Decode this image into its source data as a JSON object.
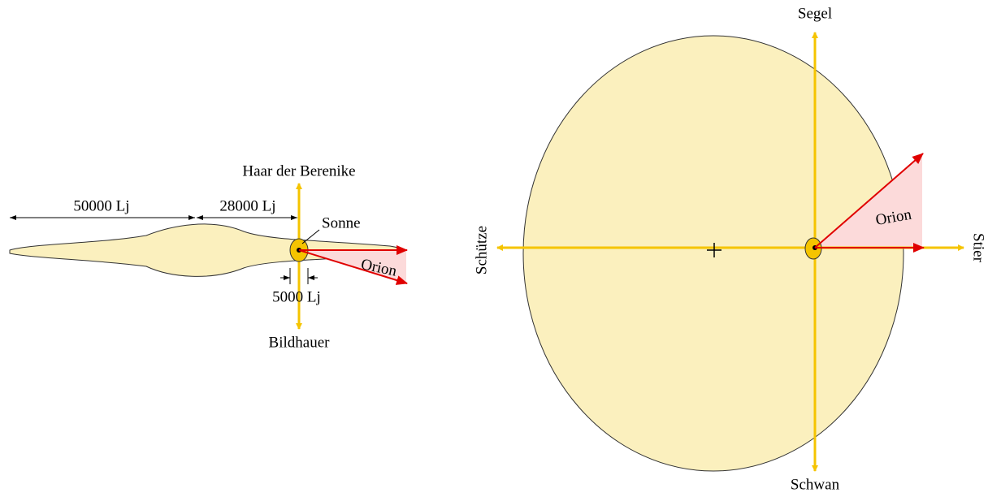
{
  "side_view": {
    "top_label": "Haar der Berenike",
    "outer_distance": "50000 Lj",
    "inner_distance": "28000 Lj",
    "sun_label": "Sonne",
    "direction_label": "Orion",
    "thickness": "5000 Lj",
    "bottom_label": "Bildhauer"
  },
  "top_view": {
    "top_label": "Segel",
    "left_label": "Schütze",
    "right_label": "Stier",
    "direction_label": "Orion",
    "bottom_label": "Schwan"
  }
}
